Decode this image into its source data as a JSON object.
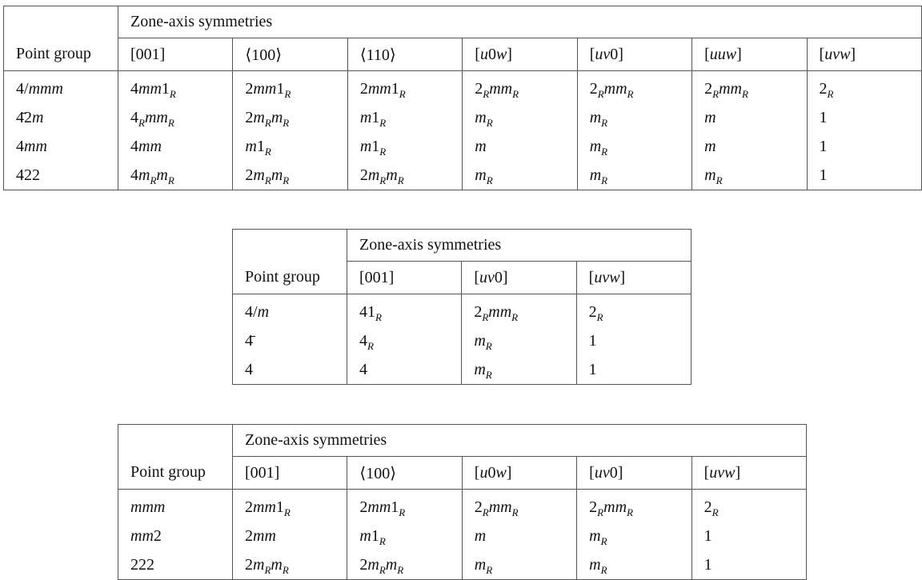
{
  "tables": [
    {
      "zone_header": "Zone-axis symmetries",
      "pg_header": "Point group",
      "columns": [
        "[001]",
        "⟨100⟩",
        "⟨110⟩",
        "[u0w]",
        "[uv0]",
        "[uuw]",
        "[uvw]"
      ],
      "rows": [
        [
          "4/mmm",
          "4mm1_R",
          "2mm1_R",
          "2mm1_R",
          "2_Rmm_R",
          "2_Rmm_R",
          "2_Rmm_R",
          "2_R"
        ],
        [
          "4̄2m",
          "4_Rmm_R",
          "2m_Rm_R",
          "m1_R",
          "m_R",
          "m_R",
          "m",
          "1"
        ],
        [
          "4mm",
          "4mm",
          "m1_R",
          "m1_R",
          "m",
          "m_R",
          "m",
          "1"
        ],
        [
          "422",
          "4m_Rm_R",
          "2m_Rm_R",
          "2m_Rm_R",
          "m_R",
          "m_R",
          "m_R",
          "1"
        ]
      ]
    },
    {
      "zone_header": "Zone-axis symmetries",
      "pg_header": "Point group",
      "columns": [
        "[001]",
        "[uv0]",
        "[uvw]"
      ],
      "rows": [
        [
          "4/m",
          "41_R",
          "2_Rmm_R",
          "2_R"
        ],
        [
          "4̄",
          "4_R",
          "m_R",
          "1"
        ],
        [
          "4",
          "4",
          "m_R",
          "1"
        ]
      ]
    },
    {
      "zone_header": "Zone-axis symmetries",
      "pg_header": "Point group",
      "columns": [
        "[001]",
        "⟨100⟩",
        "[u0w]",
        "[uv0]",
        "[uvw]"
      ],
      "rows": [
        [
          "mmm",
          "2mm1_R",
          "2mm1_R",
          "2_Rmm_R",
          "2_Rmm_R",
          "2_R"
        ],
        [
          "mm2",
          "2mm",
          "m1_R",
          "m",
          "m_R",
          "1"
        ],
        [
          "222",
          "2m_Rm_R",
          "2m_Rm_R",
          "m_R",
          "m_R",
          "1"
        ]
      ]
    }
  ]
}
